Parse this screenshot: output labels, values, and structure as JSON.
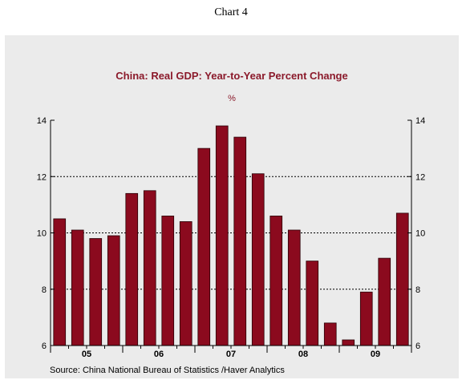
{
  "page": {
    "title": "Chart 4"
  },
  "chart_data": {
    "type": "bar",
    "title": "China: Real GDP: Year-to-Year Percent Change",
    "unit": "%",
    "xlabel": "",
    "ylabel": "",
    "ylim": [
      6,
      14
    ],
    "yticks": [
      6,
      8,
      10,
      12,
      14
    ],
    "grid": true,
    "bar_color": "#8b0a1e",
    "categories": [
      "05Q1",
      "05Q2",
      "05Q3",
      "05Q4",
      "06Q1",
      "06Q2",
      "06Q3",
      "06Q4",
      "07Q1",
      "07Q2",
      "07Q3",
      "07Q4",
      "08Q1",
      "08Q2",
      "08Q3",
      "08Q4",
      "09Q1",
      "09Q2",
      "09Q3",
      "09Q4"
    ],
    "values": [
      10.5,
      10.1,
      9.8,
      9.9,
      11.4,
      11.5,
      10.6,
      10.4,
      13.0,
      13.8,
      13.4,
      12.1,
      10.6,
      10.1,
      9.0,
      6.8,
      6.2,
      7.9,
      9.1,
      10.7
    ],
    "year_labels": [
      "05",
      "06",
      "07",
      "08",
      "09"
    ],
    "source": "Source:  China National Bureau of Statistics /Haver Analytics"
  }
}
